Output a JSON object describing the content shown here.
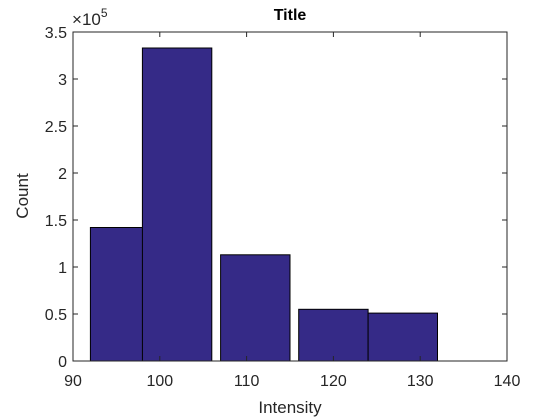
{
  "chart_data": {
    "type": "bar",
    "title": "Title",
    "xlabel": "Intensity",
    "ylabel": "Count",
    "x": [
      96,
      102,
      111,
      120,
      128
    ],
    "bar_width_data": 8,
    "values": [
      142000,
      333000,
      113000,
      55000,
      51000
    ],
    "xlim": [
      90,
      140
    ],
    "ylim": [
      0,
      350000
    ],
    "xticks": [
      90,
      100,
      110,
      120,
      130,
      140
    ],
    "xtick_labels": [
      "90",
      "100",
      "110",
      "120",
      "130",
      "140"
    ],
    "yticks": [
      0,
      50000,
      100000,
      150000,
      200000,
      250000,
      300000,
      350000
    ],
    "ytick_labels": [
      "0",
      "0.5",
      "1",
      "1.5",
      "2",
      "2.5",
      "3",
      "3.5"
    ],
    "y_multiplier_base": "10",
    "y_multiplier_exponent": "5",
    "y_multiplier_prefix": "×",
    "grid": false,
    "legend": "none",
    "bar_color": "#352a87",
    "bar_edge_color": "#000000",
    "axes_color": "#262626"
  }
}
